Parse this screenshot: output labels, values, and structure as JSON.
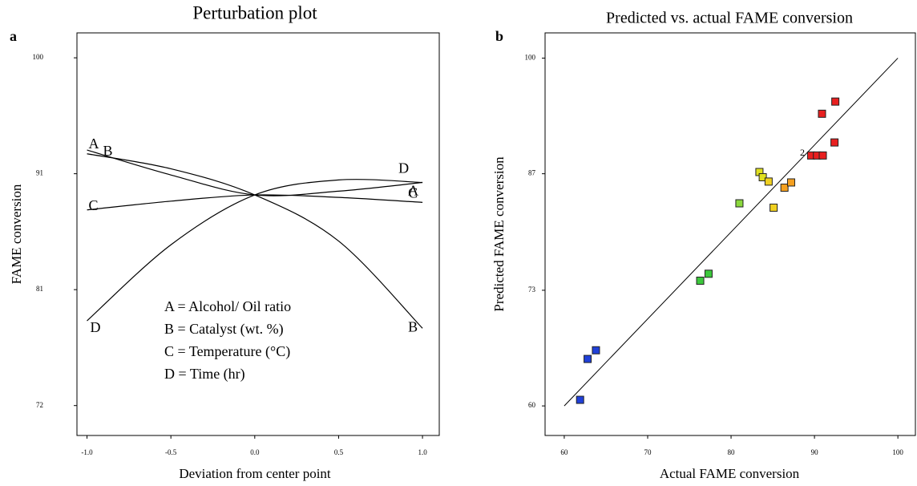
{
  "chart_data": [
    {
      "type": "line",
      "panel_label": "a",
      "title": "Perturbation plot",
      "x_label": "Deviation from center point",
      "y_label": "FAME conversion",
      "x": [
        -1,
        -0.5,
        0,
        0.5,
        1
      ],
      "series": [
        {
          "name": "A",
          "color": "#000000",
          "values": [
            92.6,
            90.6,
            89.0,
            89.3,
            90.0
          ]
        },
        {
          "name": "B",
          "color": "#000000",
          "values": [
            92.3,
            91.1,
            89.0,
            85.3,
            78.3
          ]
        },
        {
          "name": "C",
          "color": "#000000",
          "values": [
            87.8,
            88.5,
            89.0,
            88.8,
            88.4
          ]
        },
        {
          "name": "D",
          "color": "#000000",
          "values": [
            78.9,
            85.0,
            89.0,
            90.2,
            90.0
          ]
        }
      ],
      "annotations": [
        "A = Alcohol/ Oil ratio",
        "B =  Catalyst (wt. %)",
        "C = Temperature (°C)",
        "D = Time (hr)"
      ],
      "xlim": [
        -1.06,
        1.1
      ],
      "xticks": [
        {
          "value": -1,
          "label": "-1.0"
        },
        -0.5,
        {
          "value": 0,
          "label": "0.0"
        },
        0.5,
        {
          "value": 1,
          "label": "1.0"
        }
      ],
      "ylim": [
        69.7,
        102.0
      ],
      "yticks": [
        {
          "value": 72.1,
          "label": "72"
        },
        {
          "value": 81.4,
          "label": "81"
        },
        {
          "value": 90.7,
          "label": "91"
        },
        100
      ],
      "grid": false
    },
    {
      "type": "scatter",
      "panel_label": "b",
      "title": "Predicted vs. actual FAME conversion",
      "x_label": "Actual FAME conversion",
      "y_label": "Predicted FAME conversion",
      "x": [
        61.9,
        62.8,
        63.8,
        76.3,
        77.3,
        81.0,
        83.4,
        83.8,
        84.5,
        85.1,
        86.4,
        87.2,
        89.6,
        90.3,
        91.0,
        90.9,
        92.4,
        92.5
      ],
      "values": [
        60.7,
        65.4,
        66.4,
        74.4,
        75.2,
        83.3,
        86.9,
        86.3,
        85.8,
        82.8,
        85.1,
        85.7,
        88.8,
        88.8,
        88.8,
        93.6,
        90.3,
        95.0
      ],
      "colors": [
        "#2040d8",
        "#2040d8",
        "#2040d8",
        "#3cc83c",
        "#3cc83c",
        "#8ad83c",
        "#e0e020",
        "#e0e020",
        "#f0d020",
        "#f0d020",
        "#f5a020",
        "#f5a020",
        "#e82020",
        "#e82020",
        "#e82020",
        "#e82020",
        "#e82020",
        "#e82020"
      ],
      "reference_line": {
        "x": [
          60,
          100
        ],
        "values": [
          60,
          100
        ]
      },
      "annotations": [
        "2"
      ],
      "xlim": [
        57.7,
        102.1
      ],
      "xticks": [
        60,
        70,
        80,
        90,
        100
      ],
      "ylim": [
        56.6,
        102.9
      ],
      "yticks": [
        60,
        {
          "value": 73.3,
          "label": "73"
        },
        {
          "value": 86.7,
          "label": "87"
        },
        100
      ],
      "grid": false
    }
  ]
}
